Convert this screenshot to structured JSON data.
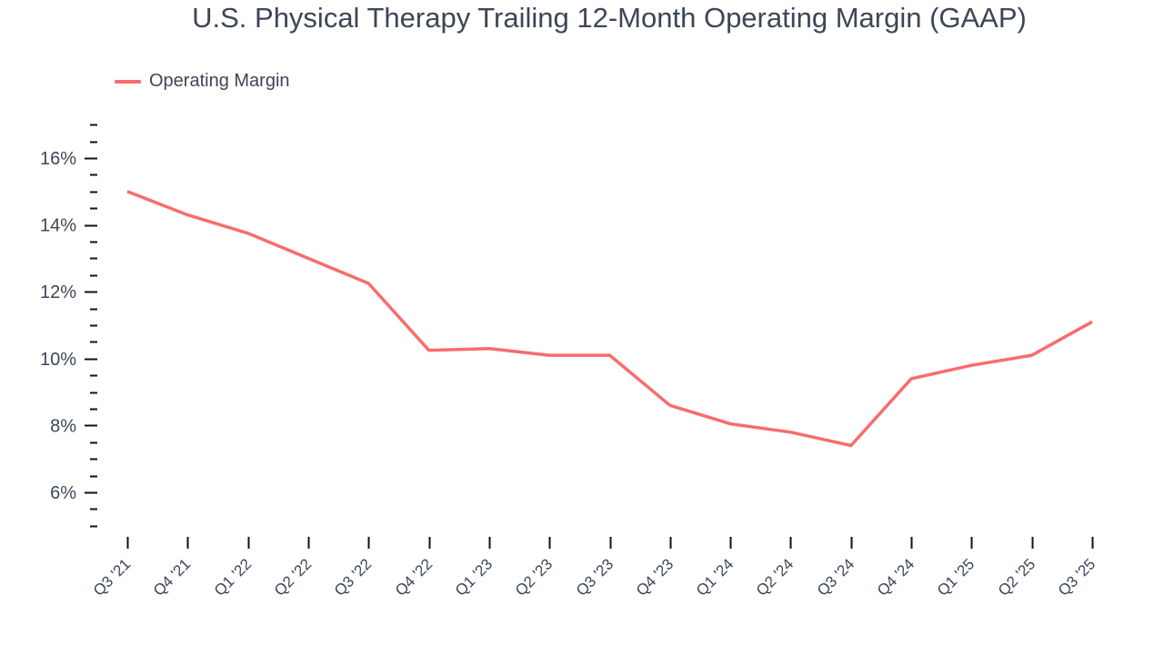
{
  "title": "U.S. Physical Therapy Trailing 12-Month Operating Margin (GAAP)",
  "legend": {
    "label": "Operating Margin",
    "color": "#f96c6c"
  },
  "chart_data": {
    "type": "line",
    "title": "U.S. Physical Therapy Trailing 12-Month Operating Margin (GAAP)",
    "xlabel": "",
    "ylabel": "",
    "categories": [
      "Q3 '21",
      "Q4 '21",
      "Q1 '22",
      "Q2 '22",
      "Q3 '22",
      "Q4 '22",
      "Q1 '23",
      "Q2 '23",
      "Q3 '23",
      "Q4 '23",
      "Q1 '24",
      "Q2 '24",
      "Q3 '24",
      "Q4 '24",
      "Q1 '25",
      "Q2 '25",
      "Q3 '25"
    ],
    "series": [
      {
        "name": "Operating Margin",
        "color": "#f96c6c",
        "values": [
          15.0,
          14.3,
          13.75,
          13.0,
          12.25,
          10.25,
          10.3,
          10.1,
          10.1,
          8.6,
          8.05,
          7.8,
          7.4,
          9.4,
          9.8,
          10.1,
          11.1
        ]
      }
    ],
    "yticks": [
      6,
      8,
      10,
      12,
      14,
      16
    ],
    "ytick_labels": [
      "6%",
      "8%",
      "10%",
      "12%",
      "14%",
      "16%"
    ],
    "ylim": [
      5,
      17
    ],
    "grid": false,
    "legend_position": "top-left"
  }
}
